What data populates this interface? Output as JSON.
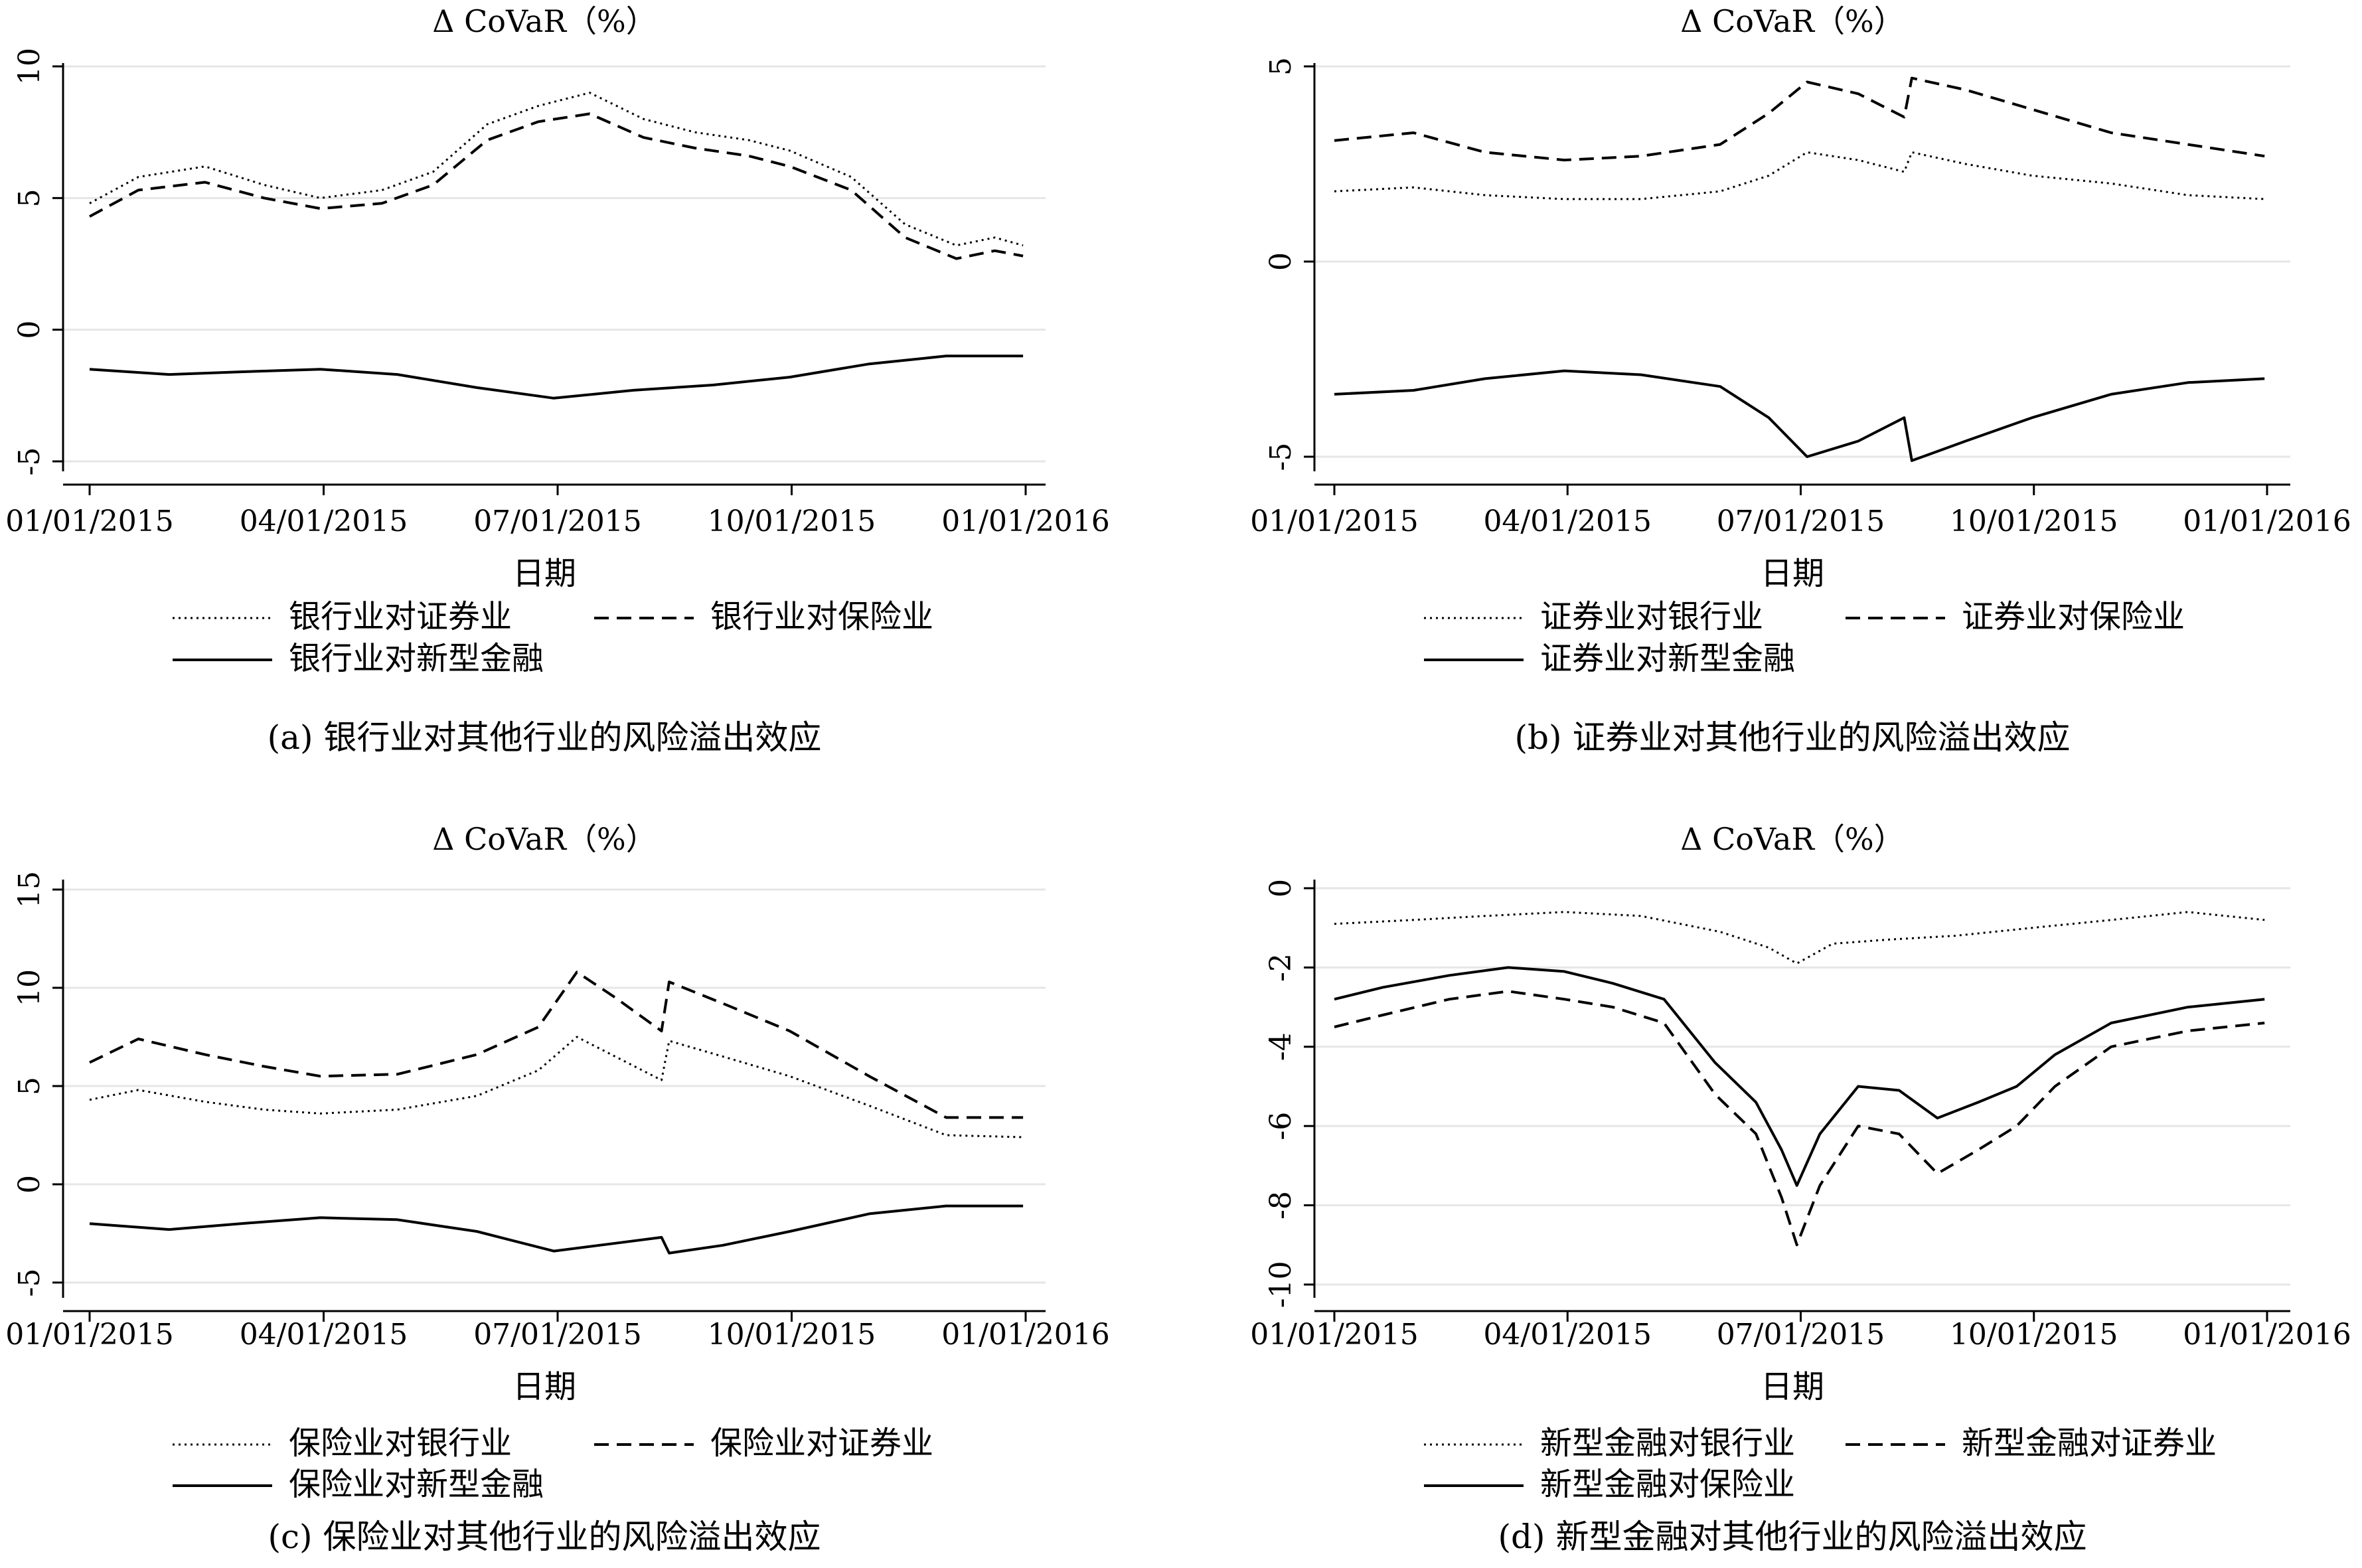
{
  "chart_data": [
    {
      "type": "line",
      "title": "Δ CoVaR（%）",
      "xlabel": "日期",
      "x_ticks": [
        "01/01/2015",
        "04/01/2015",
        "07/01/2015",
        "10/01/2015",
        "01/01/2016"
      ],
      "y_ticks": [
        "10",
        "5",
        "0",
        "-5"
      ],
      "ylim": [
        -5,
        10
      ],
      "caption": "(a) 银行业对其他行业的风险溢出效应",
      "series": [
        {
          "name": "银行业对证券业",
          "style": "dotted",
          "x": [
            "2015-01-01",
            "2015-01-20",
            "2015-02-15",
            "2015-03-10",
            "2015-04-01",
            "2015-04-25",
            "2015-05-15",
            "2015-06-05",
            "2015-06-25",
            "2015-07-15",
            "2015-08-05",
            "2015-08-25",
            "2015-09-15",
            "2015-10-01",
            "2015-10-25",
            "2015-11-15",
            "2015-12-05",
            "2015-12-20",
            "2015-12-31"
          ],
          "values": [
            4.8,
            5.8,
            6.2,
            5.5,
            5.0,
            5.3,
            6.0,
            7.8,
            8.5,
            9.0,
            8.0,
            7.5,
            7.2,
            6.8,
            5.8,
            4.0,
            3.2,
            3.5,
            3.2
          ]
        },
        {
          "name": "银行业对保险业",
          "style": "dashed",
          "x": [
            "2015-01-01",
            "2015-01-20",
            "2015-02-15",
            "2015-03-10",
            "2015-04-01",
            "2015-04-25",
            "2015-05-15",
            "2015-06-05",
            "2015-06-25",
            "2015-07-15",
            "2015-08-05",
            "2015-08-25",
            "2015-09-15",
            "2015-10-01",
            "2015-10-25",
            "2015-11-15",
            "2015-12-05",
            "2015-12-20",
            "2015-12-31"
          ],
          "values": [
            4.3,
            5.3,
            5.6,
            5.0,
            4.6,
            4.8,
            5.5,
            7.2,
            7.9,
            8.2,
            7.3,
            6.9,
            6.6,
            6.2,
            5.3,
            3.5,
            2.7,
            3.0,
            2.8
          ]
        },
        {
          "name": "银行业对新型金融",
          "style": "solid",
          "x": [
            "2015-01-01",
            "2015-02-01",
            "2015-03-01",
            "2015-04-01",
            "2015-05-01",
            "2015-06-01",
            "2015-07-01",
            "2015-08-01",
            "2015-09-01",
            "2015-10-01",
            "2015-11-01",
            "2015-12-01",
            "2015-12-31"
          ],
          "values": [
            -1.5,
            -1.7,
            -1.6,
            -1.5,
            -1.7,
            -2.2,
            -2.6,
            -2.3,
            -2.1,
            -1.8,
            -1.3,
            -1.0,
            -1.0
          ]
        }
      ]
    },
    {
      "type": "line",
      "title": "Δ CoVaR（%）",
      "xlabel": "日期",
      "x_ticks": [
        "01/01/2015",
        "04/01/2015",
        "07/01/2015",
        "10/01/2015",
        "01/01/2016"
      ],
      "y_ticks": [
        "5",
        "0",
        "-5"
      ],
      "ylim": [
        -5,
        5
      ],
      "caption": "(b) 证券业对其他行业的风险溢出效应",
      "series": [
        {
          "name": "证券业对银行业",
          "style": "dotted",
          "x": [
            "2015-01-01",
            "2015-02-01",
            "2015-03-01",
            "2015-04-01",
            "2015-05-01",
            "2015-06-01",
            "2015-06-20",
            "2015-07-05",
            "2015-07-25",
            "2015-08-12",
            "2015-08-15",
            "2015-09-05",
            "2015-10-01",
            "2015-11-01",
            "2015-12-01",
            "2015-12-31"
          ],
          "values": [
            1.8,
            1.9,
            1.7,
            1.6,
            1.6,
            1.8,
            2.2,
            2.8,
            2.6,
            2.3,
            2.8,
            2.5,
            2.2,
            2.0,
            1.7,
            1.6
          ]
        },
        {
          "name": "证券业对保险业",
          "style": "dashed",
          "x": [
            "2015-01-01",
            "2015-02-01",
            "2015-03-01",
            "2015-04-01",
            "2015-05-01",
            "2015-06-01",
            "2015-06-20",
            "2015-07-05",
            "2015-07-25",
            "2015-08-12",
            "2015-08-15",
            "2015-09-05",
            "2015-10-01",
            "2015-11-01",
            "2015-12-01",
            "2015-12-31"
          ],
          "values": [
            3.1,
            3.3,
            2.8,
            2.6,
            2.7,
            3.0,
            3.8,
            4.6,
            4.3,
            3.7,
            4.7,
            4.4,
            3.9,
            3.3,
            3.0,
            2.7
          ]
        },
        {
          "name": "证券业对新型金融",
          "style": "solid",
          "x": [
            "2015-01-01",
            "2015-02-01",
            "2015-03-01",
            "2015-04-01",
            "2015-05-01",
            "2015-06-01",
            "2015-06-20",
            "2015-07-05",
            "2015-07-25",
            "2015-08-12",
            "2015-08-15",
            "2015-09-05",
            "2015-10-01",
            "2015-11-01",
            "2015-12-01",
            "2015-12-31"
          ],
          "values": [
            -3.4,
            -3.3,
            -3.0,
            -2.8,
            -2.9,
            -3.2,
            -4.0,
            -5.0,
            -4.6,
            -4.0,
            -5.1,
            -4.6,
            -4.0,
            -3.4,
            -3.1,
            -3.0
          ]
        }
      ]
    },
    {
      "type": "line",
      "title": "Δ CoVaR（%）",
      "xlabel": "日期",
      "x_ticks": [
        "01/01/2015",
        "04/01/2015",
        "07/01/2015",
        "10/01/2015",
        "01/01/2016"
      ],
      "y_ticks": [
        "15",
        "10",
        "5",
        "0",
        "-5"
      ],
      "ylim": [
        -5,
        15
      ],
      "caption": "(c) 保险业对其他行业的风险溢出效应",
      "series": [
        {
          "name": "保险业对银行业",
          "style": "dotted",
          "x": [
            "2015-01-01",
            "2015-01-20",
            "2015-02-15",
            "2015-03-10",
            "2015-04-01",
            "2015-05-01",
            "2015-06-01",
            "2015-06-25",
            "2015-07-10",
            "2015-07-25",
            "2015-08-12",
            "2015-08-15",
            "2015-09-05",
            "2015-10-01",
            "2015-11-01",
            "2015-12-01",
            "2015-12-31"
          ],
          "values": [
            4.3,
            4.8,
            4.2,
            3.8,
            3.6,
            3.8,
            4.5,
            5.8,
            7.5,
            6.5,
            5.3,
            7.3,
            6.5,
            5.5,
            4.0,
            2.5,
            2.4
          ]
        },
        {
          "name": "保险业对证券业",
          "style": "dashed",
          "x": [
            "2015-01-01",
            "2015-01-20",
            "2015-02-15",
            "2015-03-10",
            "2015-04-01",
            "2015-05-01",
            "2015-06-01",
            "2015-06-25",
            "2015-07-10",
            "2015-07-25",
            "2015-08-12",
            "2015-08-15",
            "2015-09-05",
            "2015-10-01",
            "2015-11-01",
            "2015-12-01",
            "2015-12-31"
          ],
          "values": [
            6.2,
            7.4,
            6.6,
            6.0,
            5.5,
            5.6,
            6.6,
            8.0,
            10.8,
            9.5,
            7.8,
            10.3,
            9.2,
            7.8,
            5.5,
            3.4,
            3.4
          ]
        },
        {
          "name": "保险业对新型金融",
          "style": "solid",
          "x": [
            "2015-01-01",
            "2015-02-01",
            "2015-03-01",
            "2015-04-01",
            "2015-05-01",
            "2015-06-01",
            "2015-07-01",
            "2015-07-25",
            "2015-08-12",
            "2015-08-15",
            "2015-09-05",
            "2015-10-01",
            "2015-11-01",
            "2015-12-01",
            "2015-12-31"
          ],
          "values": [
            -2.0,
            -2.3,
            -2.0,
            -1.7,
            -1.8,
            -2.4,
            -3.4,
            -3.0,
            -2.7,
            -3.5,
            -3.1,
            -2.4,
            -1.5,
            -1.1,
            -1.1
          ]
        }
      ]
    },
    {
      "type": "line",
      "title": "Δ CoVaR（%）",
      "xlabel": "日期",
      "x_ticks": [
        "01/01/2015",
        "04/01/2015",
        "07/01/2015",
        "10/01/2015",
        "01/01/2016"
      ],
      "y_ticks": [
        "0",
        "-2",
        "-4",
        "-6",
        "-8",
        "-10"
      ],
      "ylim": [
        -10,
        0
      ],
      "caption": "(d) 新型金融对其他行业的风险溢出效应",
      "series": [
        {
          "name": "新型金融对银行业",
          "style": "dotted",
          "x": [
            "2015-01-01",
            "2015-02-01",
            "2015-03-01",
            "2015-04-01",
            "2015-05-01",
            "2015-06-01",
            "2015-06-20",
            "2015-07-01",
            "2015-07-15",
            "2015-08-05",
            "2015-09-01",
            "2015-10-01",
            "2015-11-01",
            "2015-12-01",
            "2015-12-31"
          ],
          "values": [
            -0.9,
            -0.8,
            -0.7,
            -0.6,
            -0.7,
            -1.1,
            -1.5,
            -1.9,
            -1.4,
            -1.3,
            -1.2,
            -1.0,
            -0.8,
            -0.6,
            -0.8
          ]
        },
        {
          "name": "新型金融对证券业",
          "style": "dashed",
          "x": [
            "2015-01-01",
            "2015-01-20",
            "2015-02-15",
            "2015-03-10",
            "2015-04-01",
            "2015-04-20",
            "2015-05-10",
            "2015-05-30",
            "2015-06-15",
            "2015-06-25",
            "2015-07-01",
            "2015-07-10",
            "2015-07-25",
            "2015-08-10",
            "2015-08-25",
            "2015-09-10",
            "2015-09-25",
            "2015-10-10",
            "2015-11-01",
            "2015-12-01",
            "2015-12-31"
          ],
          "values": [
            -3.5,
            -3.2,
            -2.8,
            -2.6,
            -2.8,
            -3.0,
            -3.4,
            -5.2,
            -6.2,
            -7.8,
            -9.0,
            -7.5,
            -6.0,
            -6.2,
            -7.2,
            -6.6,
            -6.0,
            -5.0,
            -4.0,
            -3.6,
            -3.4
          ]
        },
        {
          "name": "新型金融对保险业",
          "style": "solid",
          "x": [
            "2015-01-01",
            "2015-01-20",
            "2015-02-15",
            "2015-03-10",
            "2015-04-01",
            "2015-04-20",
            "2015-05-10",
            "2015-05-30",
            "2015-06-15",
            "2015-06-25",
            "2015-07-01",
            "2015-07-10",
            "2015-07-25",
            "2015-08-10",
            "2015-08-25",
            "2015-09-10",
            "2015-09-25",
            "2015-10-10",
            "2015-11-01",
            "2015-12-01",
            "2015-12-31"
          ],
          "values": [
            -2.8,
            -2.5,
            -2.2,
            -2.0,
            -2.1,
            -2.4,
            -2.8,
            -4.4,
            -5.4,
            -6.6,
            -7.5,
            -6.2,
            -5.0,
            -5.1,
            -5.8,
            -5.4,
            -5.0,
            -4.2,
            -3.4,
            -3.0,
            -2.8
          ]
        }
      ]
    }
  ]
}
